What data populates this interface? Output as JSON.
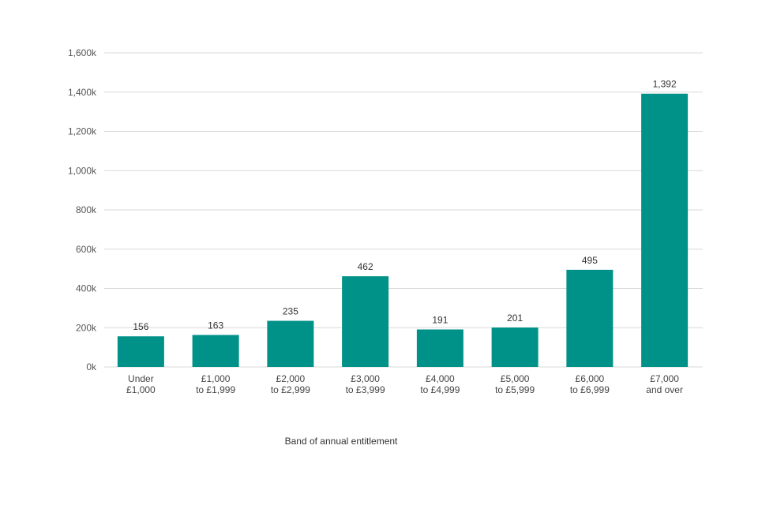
{
  "chart_data": {
    "type": "bar",
    "title": "",
    "xlabel": "Band of annual entitlement",
    "ylabel": "",
    "categories": [
      [
        "Under",
        "£1,000"
      ],
      [
        "£1,000",
        "to £1,999"
      ],
      [
        "£2,000",
        "to £2,999"
      ],
      [
        "£3,000",
        "to £3,999"
      ],
      [
        "£4,000",
        "to £4,999"
      ],
      [
        "£5,000",
        "to £5,999"
      ],
      [
        "£6,000",
        "to £6,999"
      ],
      [
        "£7,000",
        "and over"
      ]
    ],
    "values": [
      156,
      163,
      235,
      462,
      191,
      201,
      495,
      1392
    ],
    "data_labels": [
      "156",
      "163",
      "235",
      "462",
      "191",
      "201",
      "495",
      "1,392"
    ],
    "ylim": [
      0,
      1600
    ],
    "yticks": [
      0,
      200,
      400,
      600,
      800,
      1000,
      1200,
      1400,
      1600
    ],
    "ytick_labels": [
      "0k",
      "200k",
      "400k",
      "600k",
      "800k",
      "1,000k",
      "1,200k",
      "1,400k",
      "1,600k"
    ],
    "grid": true,
    "legend": "none",
    "bar_color": "#009188",
    "grid_color": "#d9d9d9"
  }
}
